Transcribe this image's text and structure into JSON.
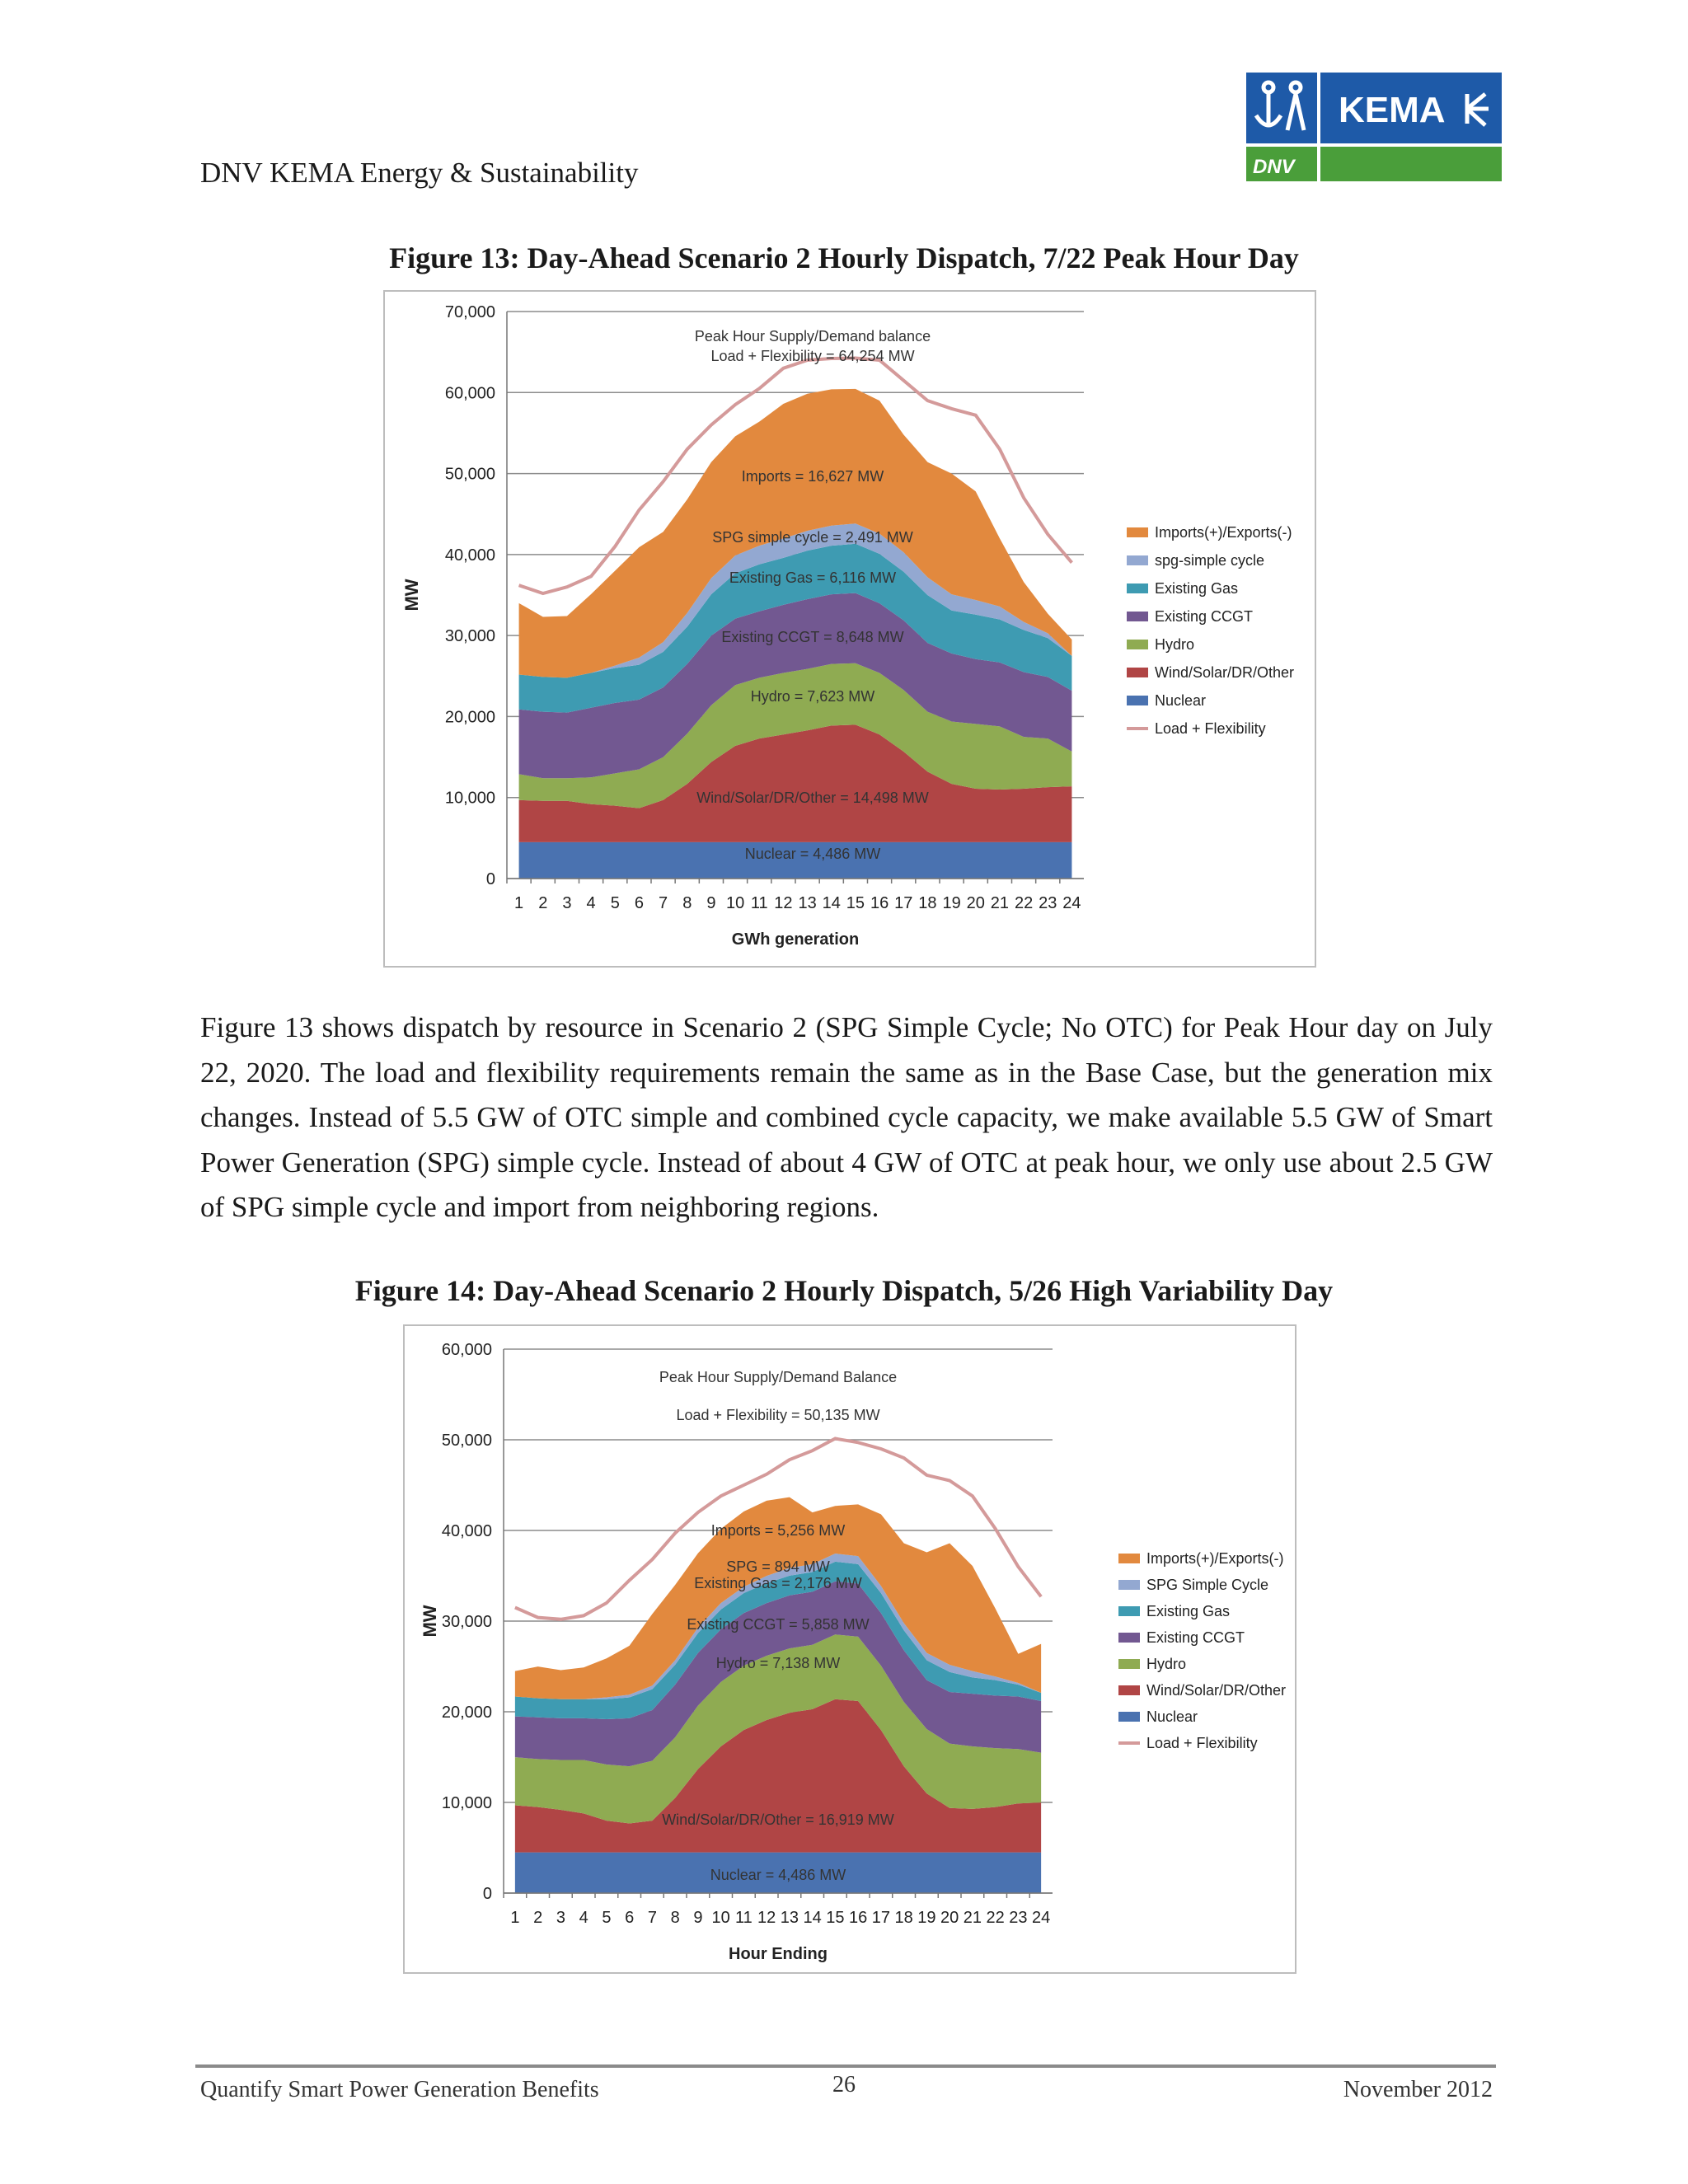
{
  "header": {
    "org": "DNV KEMA Energy & Sustainability",
    "logo_text": "KEMA",
    "logo_sub": "DNV"
  },
  "figure13": {
    "caption": "Figure 13: Day-Ahead Scenario 2 Hourly Dispatch, 7/22 Peak Hour Day"
  },
  "paragraph": "Figure 13 shows dispatch by resource in Scenario 2 (SPG Simple Cycle; No OTC) for Peak Hour day on July 22, 2020. The load and flexibility requirements remain the same as in the Base Case, but the generation mix changes. Instead of 5.5 GW of OTC simple and combined cycle capacity, we make available 5.5 GW of Smart Power Generation (SPG) simple cycle. Instead of about 4 GW of OTC at peak hour, we only use about 2.5 GW of SPG simple cycle and import from neighboring regions.",
  "figure14": {
    "caption": "Figure 14: Day-Ahead Scenario 2 Hourly Dispatch, 5/26 High Variability Day"
  },
  "footer": {
    "left": "Quantify Smart Power Generation Benefits",
    "page": "26",
    "right": "November 2012"
  },
  "colors": {
    "nuclear": "#4a72b0",
    "wind": "#b04545",
    "hydro": "#8fab52",
    "ccgt": "#725891",
    "gas": "#3e9bb2",
    "spg": "#93a8d1",
    "imports": "#e2893e",
    "load": "#d49a9a"
  },
  "chart_data": [
    {
      "type": "area",
      "title": "",
      "xlabel": "GWh generation",
      "ylabel": "MW",
      "ylim": [
        0,
        70000
      ],
      "yticks": [
        "0",
        "10,000",
        "20,000",
        "30,000",
        "40,000",
        "50,000",
        "60,000",
        "70,000"
      ],
      "x": [
        1,
        2,
        3,
        4,
        5,
        6,
        7,
        8,
        9,
        10,
        11,
        12,
        13,
        14,
        15,
        16,
        17,
        18,
        19,
        20,
        21,
        22,
        23,
        24
      ],
      "legend_position": "right",
      "series": [
        {
          "name": "Nuclear",
          "key": "nuclear",
          "values": [
            4486,
            4486,
            4486,
            4486,
            4486,
            4486,
            4486,
            4486,
            4486,
            4486,
            4486,
            4486,
            4486,
            4486,
            4486,
            4486,
            4486,
            4486,
            4486,
            4486,
            4486,
            4486,
            4486,
            4486
          ]
        },
        {
          "name": "Wind/Solar/DR/Other",
          "key": "wind",
          "values": [
            5200,
            5100,
            5100,
            4700,
            4500,
            4200,
            5200,
            7200,
            9900,
            11900,
            12800,
            13300,
            13800,
            14400,
            14500,
            13300,
            11200,
            8700,
            7200,
            6600,
            6500,
            6600,
            6800,
            6900
          ]
        },
        {
          "name": "Hydro",
          "key": "hydro",
          "values": [
            3200,
            2800,
            2800,
            3300,
            4000,
            4800,
            5300,
            6200,
            7000,
            7500,
            7500,
            7600,
            7600,
            7600,
            7600,
            7600,
            7600,
            7400,
            7700,
            8000,
            7800,
            6400,
            6000,
            4300
          ]
        },
        {
          "name": "Existing CCGT",
          "key": "ccgt",
          "values": [
            8000,
            8200,
            8100,
            8600,
            8700,
            8600,
            8600,
            8600,
            8600,
            8200,
            8200,
            8400,
            8600,
            8600,
            8650,
            8600,
            8600,
            8500,
            8400,
            8000,
            7900,
            8000,
            7600,
            7500
          ]
        },
        {
          "name": "Existing Gas",
          "key": "gas",
          "values": [
            4300,
            4300,
            4300,
            4300,
            4300,
            4300,
            4400,
            4600,
            5100,
            5600,
            5800,
            5800,
            6000,
            6000,
            6100,
            6100,
            6000,
            5900,
            5300,
            5500,
            5300,
            5200,
            4800,
            4300
          ]
        },
        {
          "name": "spg-simple cycle",
          "key": "spg",
          "values": [
            0,
            0,
            0,
            0,
            300,
            900,
            1200,
            1700,
            2000,
            2200,
            2300,
            2400,
            2450,
            2490,
            2491,
            2490,
            2400,
            2200,
            2000,
            1800,
            1600,
            1000,
            600,
            0
          ]
        },
        {
          "name": "Imports(+)/Exports(-)",
          "key": "imports",
          "values": [
            8814,
            7414,
            7614,
            9714,
            11714,
            13614,
            13614,
            14014,
            14314,
            14714,
            15314,
            16614,
            16914,
            16824,
            16627,
            16424,
            14514,
            14214,
            14914,
            13414,
            8414,
            4914,
            2414,
            2014
          ]
        }
      ],
      "load": {
        "name": "Load + Flexibility",
        "values": [
          36200,
          35200,
          36000,
          37300,
          41000,
          45500,
          49000,
          53000,
          56000,
          58500,
          60500,
          63000,
          64000,
          64200,
          64254,
          64000,
          61500,
          59000,
          58000,
          57200,
          53000,
          47000,
          42500,
          39000
        ]
      },
      "annotations": [
        "Peak Hour Supply/Demand balance",
        "Load + Flexibility = 64,254 MW",
        "Imports = 16,627 MW",
        "SPG simple cycle = 2,491 MW",
        "Existing Gas = 6,116 MW",
        "Existing CCGT = 8,648 MW",
        "Hydro = 7,623 MW",
        "Wind/Solar/DR/Other = 14,498 MW",
        "Nuclear = 4,486 MW"
      ]
    },
    {
      "type": "area",
      "title": "",
      "xlabel": "Hour Ending",
      "ylabel": "MW",
      "ylim": [
        0,
        60000
      ],
      "yticks": [
        "0",
        "10,000",
        "20,000",
        "30,000",
        "40,000",
        "50,000",
        "60,000"
      ],
      "x": [
        1,
        2,
        3,
        4,
        5,
        6,
        7,
        8,
        9,
        10,
        11,
        12,
        13,
        14,
        15,
        16,
        17,
        18,
        19,
        20,
        21,
        22,
        23,
        24
      ],
      "legend_position": "right",
      "series": [
        {
          "name": "Nuclear",
          "key": "nuclear",
          "values": [
            4486,
            4486,
            4486,
            4486,
            4486,
            4486,
            4486,
            4486,
            4486,
            4486,
            4486,
            4486,
            4486,
            4486,
            4486,
            4486,
            4486,
            4486,
            4486,
            4486,
            4486,
            4486,
            4486,
            4486
          ]
        },
        {
          "name": "Wind/Solar/DR/Other",
          "key": "wind",
          "values": [
            5200,
            5000,
            4700,
            4300,
            3500,
            3200,
            3500,
            6000,
            9200,
            11700,
            13500,
            14600,
            15400,
            15800,
            16900,
            16700,
            13500,
            9500,
            6500,
            4900,
            4800,
            5000,
            5400,
            5500
          ]
        },
        {
          "name": "Hydro",
          "key": "hydro",
          "values": [
            5300,
            5300,
            5500,
            5900,
            6200,
            6300,
            6600,
            6700,
            7000,
            7100,
            7100,
            7100,
            7100,
            7100,
            7138,
            7100,
            7100,
            7100,
            7100,
            7100,
            6900,
            6500,
            6000,
            5500
          ]
        },
        {
          "name": "Existing CCGT",
          "key": "ccgt",
          "values": [
            4500,
            4600,
            4600,
            4600,
            5000,
            5300,
            5600,
            5800,
            5800,
            5800,
            5800,
            5800,
            5850,
            5850,
            5858,
            5850,
            5800,
            5700,
            5400,
            5700,
            5800,
            5800,
            5800,
            5700
          ]
        },
        {
          "name": "Existing Gas",
          "key": "gas",
          "values": [
            2200,
            2100,
            2100,
            2100,
            2200,
            2300,
            2300,
            2200,
            2200,
            2200,
            2200,
            2200,
            2180,
            2170,
            2176,
            2150,
            2200,
            2200,
            2200,
            2200,
            1800,
            1700,
            1300,
            900
          ]
        },
        {
          "name": "SPG Simple Cycle",
          "key": "spg",
          "values": [
            0,
            0,
            0,
            0,
            200,
            300,
            400,
            500,
            600,
            700,
            700,
            800,
            850,
            880,
            894,
            890,
            800,
            800,
            800,
            800,
            700,
            400,
            200,
            0
          ]
        },
        {
          "name": "Imports(+)/Exports(-)",
          "key": "imports",
          "values": [
            2800,
            3500,
            3200,
            3500,
            4300,
            5400,
            7900,
            8300,
            8200,
            8200,
            8300,
            8300,
            7800,
            5700,
            5256,
            5700,
            7900,
            8800,
            11100,
            13400,
            11600,
            7500,
            3200,
            5400
          ]
        }
      ],
      "load": {
        "name": "Load + Flexibility",
        "values": [
          31500,
          30400,
          30200,
          30600,
          32000,
          34500,
          36800,
          39700,
          42000,
          43800,
          45000,
          46200,
          47800,
          48800,
          50135,
          49700,
          49000,
          48000,
          46100,
          45500,
          43800,
          40200,
          36000,
          32700
        ]
      },
      "annotations": [
        "Peak Hour Supply/Demand Balance",
        "Load + Flexibility =  50,135  MW",
        "Imports =  5,256 MW",
        "SPG = 894 MW",
        "Existing Gas = 2,176 MW",
        "Existing CCGT = 5,858 MW",
        "Hydro = 7,138 MW",
        "Wind/Solar/DR/Other = 16,919 MW",
        "Nuclear = 4,486 MW"
      ]
    }
  ]
}
